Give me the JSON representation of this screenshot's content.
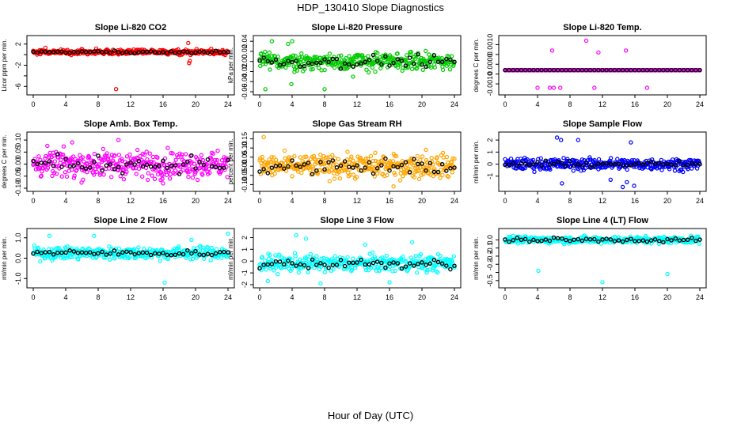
{
  "figure": {
    "title": "HDP_130410  Slope Diagnostics",
    "xlabel": "Hour of Day (UTC)"
  },
  "chart_data": [
    {
      "type": "scatter",
      "title": "Slope Li-820 CO2",
      "ylabel": "Licor ppm per min.",
      "color": "#ff0000",
      "xlim": [
        0,
        24
      ],
      "ylim": [
        -7,
        3
      ],
      "xticks": [
        0,
        4,
        8,
        12,
        16,
        20,
        24
      ],
      "yticks": [
        -6,
        -4,
        -2,
        0,
        2
      ],
      "ytick_labels": [
        "-6",
        "",
        "-2",
        "",
        "2"
      ],
      "base": 0.5,
      "noise": 0.35,
      "hourly_noise": 0.15,
      "outliers": [
        [
          10.2,
          -6.5
        ],
        [
          19.1,
          2.2
        ],
        [
          19.2,
          -1.6
        ],
        [
          19.3,
          -1.2
        ],
        [
          1.5,
          1.3
        ]
      ]
    },
    {
      "type": "scatter",
      "title": "Slope Li-820 Pressure",
      "ylabel": "kPa per min.",
      "color": "#00cc00",
      "xlim": [
        0,
        24
      ],
      "ylim": [
        -0.06,
        0.045
      ],
      "xticks": [
        0,
        4,
        8,
        12,
        16,
        20,
        24
      ],
      "yticks": [
        -0.06,
        -0.04,
        -0.02,
        0.0,
        0.02,
        0.04
      ],
      "ytick_labels": [
        "-0.06",
        "-0.04",
        "-0.02",
        "0.00",
        "0.02",
        "0.04"
      ],
      "base": 0.0,
      "noise": 0.012,
      "hourly_noise": 0.008,
      "outliers": [
        [
          1.5,
          0.04
        ],
        [
          3.5,
          0.035
        ],
        [
          4.0,
          0.04
        ],
        [
          0.7,
          -0.055
        ],
        [
          8.0,
          -0.055
        ],
        [
          3.9,
          -0.045
        ],
        [
          11.5,
          -0.03
        ]
      ]
    },
    {
      "type": "scatter",
      "title": "Slope Li-820 Temp.",
      "ylabel": "degrees C per min.",
      "color": "#ff00ff",
      "xlim": [
        0,
        24
      ],
      "ylim": [
        -0.0014,
        0.0013
      ],
      "xticks": [
        0,
        4,
        8,
        12,
        16,
        20,
        24
      ],
      "yticks": [
        -0.001,
        -0.0005,
        0.0,
        0.0005,
        0.001
      ],
      "ytick_labels": [
        "-0.0010",
        "",
        "0.0000",
        "",
        "0.0010"
      ],
      "base": -0.0003,
      "noise": 0.0,
      "hourly_noise": 0.0,
      "outliers": [
        [
          10.0,
          0.0012
        ],
        [
          5.8,
          0.0007
        ],
        [
          14.9,
          0.0007
        ],
        [
          11.5,
          0.0006
        ],
        [
          4.0,
          -0.0012
        ],
        [
          5.5,
          -0.0012
        ],
        [
          6.0,
          -0.0012
        ],
        [
          6.8,
          -0.0012
        ],
        [
          11.0,
          -0.0012
        ],
        [
          17.5,
          -0.0012
        ]
      ]
    },
    {
      "type": "scatter",
      "title": "Slope Amb. Box Temp.",
      "ylabel": "degrees C per min.",
      "color": "#ff00ff",
      "xlim": [
        0,
        24
      ],
      "ylim": [
        -0.1,
        0.12
      ],
      "xticks": [
        0,
        4,
        8,
        12,
        16,
        20,
        24
      ],
      "yticks": [
        -0.1,
        -0.05,
        0.0,
        0.05,
        0.1
      ],
      "ytick_labels": [
        "-0.10",
        "-0.05",
        "0.00",
        "0.05",
        "0.10"
      ],
      "base": 0.0,
      "noise": 0.04,
      "hourly_noise": 0.025,
      "outliers": [
        [
          4.8,
          0.09
        ],
        [
          10.5,
          0.1
        ],
        [
          16.0,
          -0.08
        ]
      ]
    },
    {
      "type": "scatter",
      "title": "Slope Gas Stream RH",
      "ylabel": "percent per min.",
      "color": "#ffa500",
      "xlim": [
        0,
        24
      ],
      "ylim": [
        -0.12,
        0.17
      ],
      "xticks": [
        0,
        4,
        8,
        12,
        16,
        20,
        24
      ],
      "yticks": [
        -0.1,
        -0.05,
        0.0,
        0.05,
        0.1,
        0.15
      ],
      "ytick_labels": [
        "-0.10",
        "-0.05",
        "0.00",
        "0.05",
        "0.10",
        "0.15"
      ],
      "base": 0.0,
      "noise": 0.045,
      "hourly_noise": 0.03,
      "outliers": [
        [
          0.5,
          0.16
        ],
        [
          20.5,
          0.09
        ],
        [
          16.5,
          -0.11
        ]
      ]
    },
    {
      "type": "scatter",
      "title": "Slope Sample Flow",
      "ylabel": "ml/min per min.",
      "color": "#0000ff",
      "xlim": [
        0,
        24
      ],
      "ylim": [
        -2.0,
        2.4
      ],
      "xticks": [
        0,
        4,
        8,
        12,
        16,
        20,
        24
      ],
      "yticks": [
        -1,
        0,
        1,
        2
      ],
      "ytick_labels": [
        "-1",
        "0",
        "1",
        "2"
      ],
      "base": 0.0,
      "noise": 0.35,
      "hourly_noise": 0.15,
      "outliers": [
        [
          6.4,
          2.2
        ],
        [
          6.9,
          2.0
        ],
        [
          9.0,
          2.0
        ],
        [
          15.5,
          1.8
        ],
        [
          7.0,
          -1.6
        ],
        [
          13.0,
          -1.3
        ],
        [
          14.5,
          -1.9
        ],
        [
          15.0,
          -1.5
        ],
        [
          15.9,
          -1.8
        ]
      ]
    },
    {
      "type": "scatter",
      "title": "Slope Line 2 Flow",
      "ylabel": "ml/min per min.",
      "color": "#00ffff",
      "xlim": [
        0,
        24
      ],
      "ylim": [
        -1.3,
        1.3
      ],
      "xticks": [
        0,
        4,
        8,
        12,
        16,
        20,
        24
      ],
      "yticks": [
        -1.0,
        0.0,
        1.0
      ],
      "ytick_labels": [
        "-1.0",
        "0.0",
        "1.0"
      ],
      "base": 0.25,
      "noise": 0.22,
      "hourly_noise": 0.1,
      "outliers": [
        [
          2.0,
          1.1
        ],
        [
          7.5,
          1.1
        ],
        [
          16.2,
          -1.2
        ],
        [
          24.0,
          1.2
        ],
        [
          19.5,
          0.9
        ]
      ]
    },
    {
      "type": "scatter",
      "title": "Slope Line 3 Flow",
      "ylabel": "ml/min per min.",
      "color": "#00ffff",
      "xlim": [
        0,
        24
      ],
      "ylim": [
        -2.0,
        2.5
      ],
      "xticks": [
        0,
        4,
        8,
        12,
        16,
        20,
        24
      ],
      "yticks": [
        -2,
        -1,
        0,
        1,
        2
      ],
      "ytick_labels": [
        "-2",
        "-1",
        "0",
        "1",
        "2"
      ],
      "base": -0.2,
      "noise": 0.5,
      "hourly_noise": 0.3,
      "outliers": [
        [
          4.5,
          2.2
        ],
        [
          5.7,
          1.9
        ],
        [
          7.5,
          -1.9
        ],
        [
          1.0,
          -1.7
        ],
        [
          13.0,
          1.4
        ],
        [
          16.0,
          -1.8
        ],
        [
          18.8,
          1.6
        ]
      ]
    },
    {
      "type": "scatter",
      "title": "Slope Line 4 (LT) Flow",
      "ylabel": "ml/min per min.",
      "color": "#00ffff",
      "xlim": [
        0,
        24
      ],
      "ylim": [
        -0.55,
        0.1
      ],
      "xticks": [
        0,
        4,
        8,
        12,
        16,
        20,
        24
      ],
      "yticks": [
        -0.5,
        -0.4,
        -0.3,
        -0.2,
        -0.1,
        0.0
      ],
      "ytick_labels": [
        "-0.5",
        "",
        "-0.3",
        "-0.2",
        "-0.1",
        "0.0"
      ],
      "base": 0.0,
      "noise": 0.03,
      "hourly_noise": 0.02,
      "outliers": [
        [
          4.1,
          -0.38
        ],
        [
          12.0,
          -0.52
        ],
        [
          20.0,
          -0.42
        ]
      ]
    }
  ]
}
